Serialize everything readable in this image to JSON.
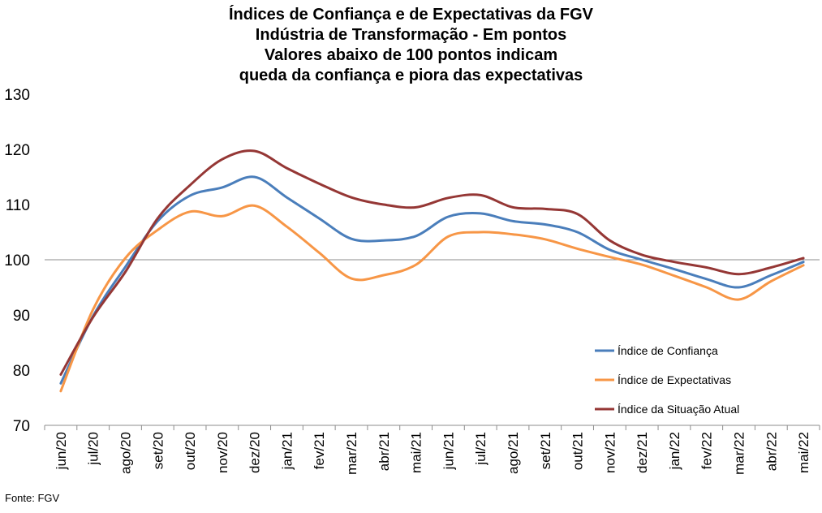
{
  "chart_data": {
    "type": "line",
    "title_lines": [
      "Índices de Confiança e de Expectativas da FGV",
      "Indústria de Transformação - Em pontos",
      "Valores abaixo de 100 pontos indicam",
      "queda da confiança e piora das expectativas"
    ],
    "categories": [
      "jun/20",
      "jul/20",
      "ago/20",
      "set/20",
      "out/20",
      "nov/20",
      "dez/20",
      "jan/21",
      "fev/21",
      "mar/21",
      "abr/21",
      "mai/21",
      "jun/21",
      "jul/21",
      "ago/21",
      "set/21",
      "out/21",
      "nov/21",
      "dez/21",
      "jan/22",
      "fev/22",
      "mar/22",
      "abr/22",
      "mai/22"
    ],
    "ylim": [
      70,
      130
    ],
    "yticks": [
      70,
      80,
      90,
      100,
      110,
      120,
      130
    ],
    "reference_line": 100,
    "legend_position": "right",
    "series": [
      {
        "name": "Índice de Confiança",
        "color": "#4a7ebb",
        "values": [
          77.6,
          89.8,
          98.7,
          107.0,
          111.6,
          113.1,
          115.0,
          111.3,
          107.5,
          103.8,
          103.5,
          104.3,
          107.8,
          108.4,
          107.0,
          106.4,
          105.0,
          101.8,
          100.0,
          98.3,
          96.5,
          95.0,
          97.2,
          99.6
        ]
      },
      {
        "name": "Índice de Expectativas",
        "color": "#f79646",
        "values": [
          76.2,
          91.0,
          100.3,
          105.4,
          108.7,
          107.9,
          109.8,
          106.0,
          101.3,
          96.6,
          97.2,
          99.1,
          104.2,
          105.0,
          104.6,
          103.7,
          102.0,
          100.5,
          99.1,
          97.1,
          95.0,
          92.8,
          96.1,
          99.0
        ]
      },
      {
        "name": "Índice da Situação Atual",
        "color": "#953735",
        "values": [
          79.2,
          89.6,
          97.8,
          107.5,
          113.5,
          118.2,
          119.7,
          116.6,
          113.8,
          111.3,
          110.0,
          109.5,
          111.2,
          111.7,
          109.5,
          109.2,
          108.3,
          103.5,
          100.9,
          99.6,
          98.6,
          97.4,
          98.6,
          100.3
        ]
      }
    ],
    "source": "Fonte: FGV"
  }
}
